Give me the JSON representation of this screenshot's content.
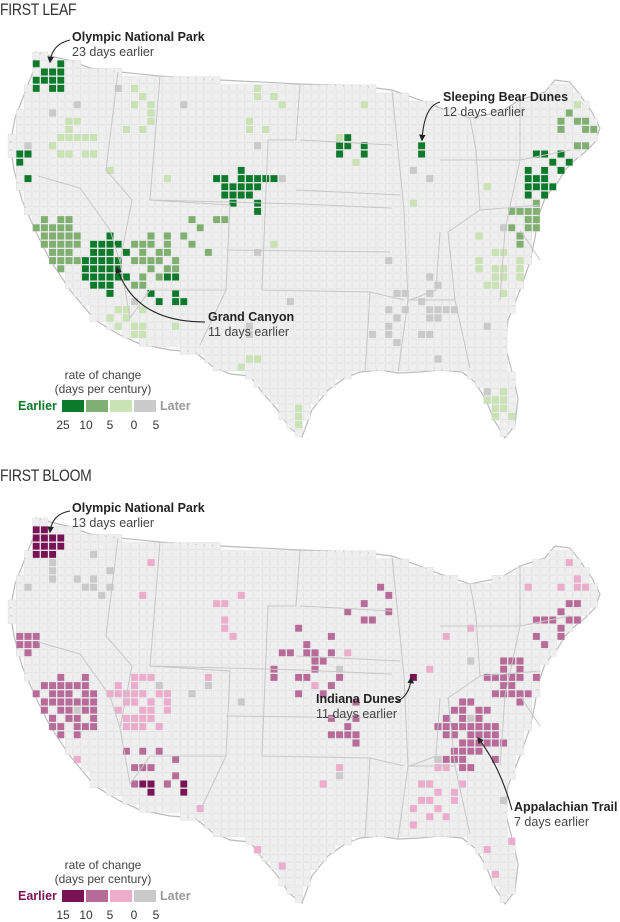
{
  "colors": {
    "grid_cell": "#efefef",
    "grid_line": "#d4d4d4",
    "land": "#fafafa",
    "border": "#bdbdbd",
    "leaf_scale": [
      "#0b7a2a",
      "#7fb071",
      "#c9e4b2",
      "#cacaca"
    ],
    "bloom_scale": [
      "#7a1355",
      "#b86a98",
      "#eeaccd",
      "#cacaca"
    ]
  },
  "panels": [
    {
      "id": "leaf",
      "title": "FIRST LEAF",
      "callouts": [
        {
          "name": "Olympic National Park",
          "detail": "23 days earlier"
        },
        {
          "name": "Sleeping Bear Dunes",
          "detail": "12 days earlier"
        },
        {
          "name": "Grand Canyon",
          "detail": "11 days earlier"
        }
      ],
      "legend": {
        "title": "rate of change",
        "subtitle": "(days per century)",
        "earlier_label": "Earlier",
        "later_label": "Later",
        "ticks": [
          "25",
          "10",
          "5",
          "0",
          "5"
        ]
      }
    },
    {
      "id": "bloom",
      "title": "FIRST BLOOM",
      "callouts": [
        {
          "name": "Olympic National Park",
          "detail": "13 days earlier"
        },
        {
          "name": "Indiana Dunes",
          "detail": "11 days earlier"
        },
        {
          "name": "Appalachian Trail",
          "detail": "7 days earlier"
        }
      ],
      "legend": {
        "title": "rate of change",
        "subtitle": "(days per century)",
        "earlier_label": "Earlier",
        "later_label": "Later",
        "ticks": [
          "15",
          "10",
          "5",
          "0",
          "5"
        ]
      }
    }
  ]
}
